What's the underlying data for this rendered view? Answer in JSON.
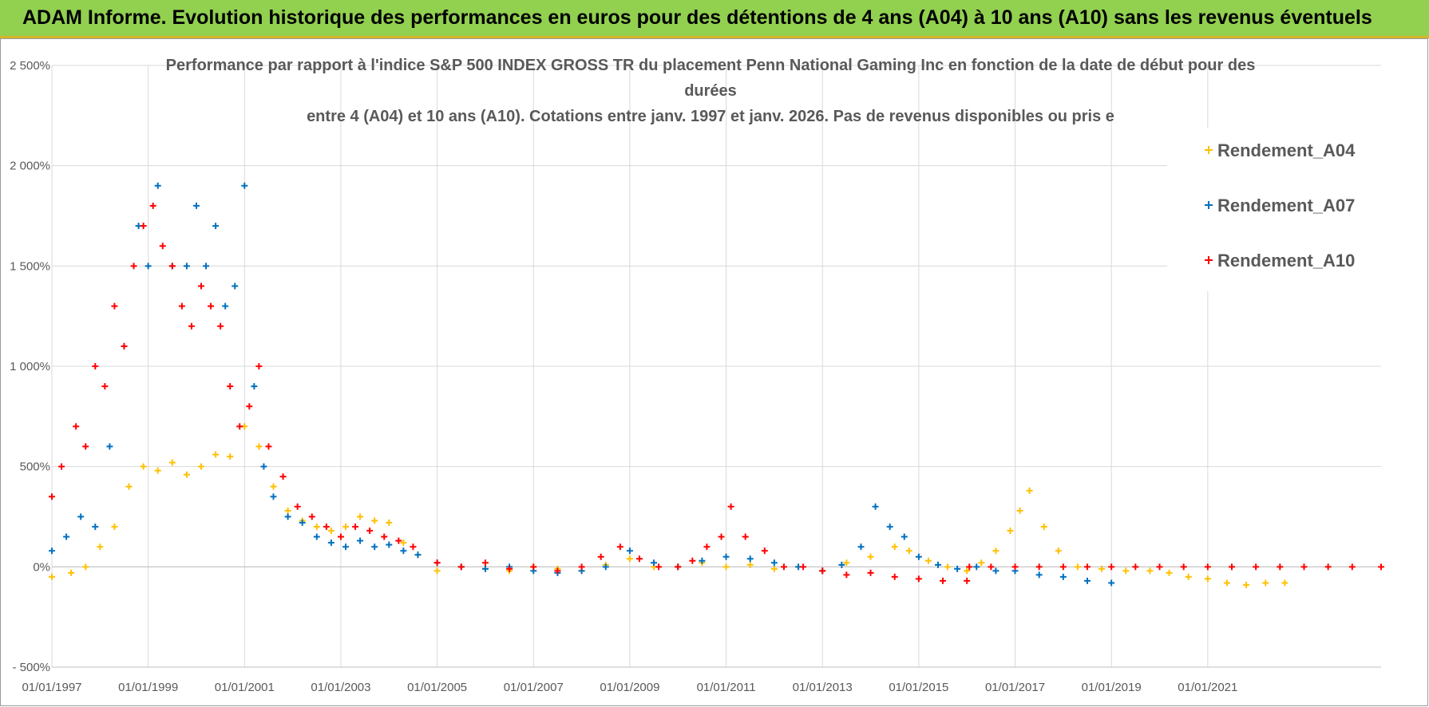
{
  "header": {
    "title": "ADAM Informe. Evolution historique des performances en euros pour des détentions de 4 ans (A04) à 10 ans (A10) sans les revenus éventuels"
  },
  "chart_data": {
    "type": "scatter",
    "title_lines": [
      "Performance par rapport à l'indice S&P 500 INDEX GROSS TR  du placement Penn National Gaming Inc en fonction de la date de début pour des",
      "durées",
      "entre 4 (A04) et 10 ans (A10). Cotations entre janv. 1997 et janv. 2026. Pas de revenus disponibles ou pris e"
    ],
    "xlabel": "",
    "ylabel": "",
    "xlim": [
      1997.0,
      2024.6
    ],
    "ylim": [
      -500,
      2500
    ],
    "ytick_values": [
      -500,
      0,
      500,
      1000,
      1500,
      2000,
      2500
    ],
    "ytick_labels": [
      "- 500%",
      "0%",
      "500%",
      "1 000%",
      "1 500%",
      "2 000%",
      "2 500%"
    ],
    "xtick_values": [
      1997,
      1999,
      2001,
      2003,
      2005,
      2007,
      2009,
      2011,
      2013,
      2015,
      2017,
      2019,
      2021
    ],
    "xtick_labels": [
      "01/01/1997",
      "01/01/1999",
      "01/01/2001",
      "01/01/2003",
      "01/01/2005",
      "01/01/2007",
      "01/01/2009",
      "01/01/2011",
      "01/01/2013",
      "01/01/2015",
      "01/01/2017",
      "01/01/2019",
      "01/01/2021"
    ],
    "grid": true,
    "legend_position": "top-right",
    "series": [
      {
        "name": "Rendement_A04",
        "color": "#ffc000",
        "x": [
          1997.0,
          1997.4,
          1997.7,
          1998.0,
          1998.3,
          1998.6,
          1998.9,
          1999.2,
          1999.5,
          1999.8,
          2000.1,
          2000.4,
          2000.7,
          2001.0,
          2001.3,
          2001.6,
          2001.9,
          2002.2,
          2002.5,
          2002.8,
          2003.1,
          2003.4,
          2003.7,
          2004.0,
          2004.3,
          2004.6,
          2005.0,
          2005.5,
          2006.0,
          2006.5,
          2007.0,
          2007.5,
          2008.0,
          2008.5,
          2009.0,
          2009.5,
          2010.0,
          2010.5,
          2011.0,
          2011.5,
          2012.0,
          2012.5,
          2013.0,
          2013.5,
          2014.0,
          2014.5,
          2014.8,
          2015.2,
          2015.6,
          2016.0,
          2016.3,
          2016.6,
          2016.9,
          2017.1,
          2017.3,
          2017.6,
          2017.9,
          2018.3,
          2018.8,
          2019.3,
          2019.8,
          2020.2,
          2020.6,
          2021.0,
          2021.4,
          2021.8,
          2022.2,
          2022.6
        ],
        "y": [
          -50,
          -30,
          0,
          100,
          200,
          400,
          500,
          480,
          520,
          460,
          500,
          560,
          550,
          700,
          600,
          400,
          280,
          230,
          200,
          180,
          200,
          250,
          230,
          220,
          120,
          60,
          -20,
          0,
          -10,
          -20,
          0,
          -10,
          -20,
          10,
          40,
          0,
          0,
          20,
          0,
          10,
          -10,
          0,
          -20,
          20,
          50,
          100,
          80,
          30,
          0,
          -20,
          20,
          80,
          180,
          280,
          380,
          200,
          80,
          0,
          -10,
          -20,
          -20,
          -30,
          -50,
          -60,
          -80,
          -90,
          -80,
          -80
        ]
      },
      {
        "name": "Rendement_A07",
        "color": "#0070c0",
        "x": [
          1997.0,
          1997.3,
          1997.6,
          1997.9,
          1998.2,
          1998.5,
          1998.8,
          1999.0,
          1999.2,
          1999.5,
          1999.8,
          2000.0,
          2000.2,
          2000.4,
          2000.6,
          2000.8,
          2001.0,
          2001.2,
          2001.4,
          2001.6,
          2001.9,
          2002.2,
          2002.5,
          2002.8,
          2003.1,
          2003.4,
          2003.7,
          2004.0,
          2004.3,
          2004.6,
          2005.0,
          2005.5,
          2006.0,
          2006.5,
          2007.0,
          2007.5,
          2008.0,
          2008.5,
          2009.0,
          2009.5,
          2010.0,
          2010.5,
          2011.0,
          2011.5,
          2012.0,
          2012.5,
          2013.0,
          2013.4,
          2013.8,
          2014.1,
          2014.4,
          2014.7,
          2015.0,
          2015.4,
          2015.8,
          2016.2,
          2016.6,
          2017.0,
          2017.5,
          2018.0,
          2018.5,
          2019.0
        ],
        "y": [
          80,
          150,
          250,
          200,
          600,
          1100,
          1700,
          1500,
          1900,
          1500,
          1500,
          1800,
          1500,
          1700,
          1300,
          1400,
          1900,
          900,
          500,
          350,
          250,
          220,
          150,
          120,
          100,
          130,
          100,
          110,
          80,
          60,
          20,
          0,
          -10,
          0,
          -20,
          -30,
          -20,
          0,
          80,
          20,
          0,
          30,
          50,
          40,
          20,
          0,
          -20,
          10,
          100,
          300,
          200,
          150,
          50,
          10,
          -10,
          0,
          -20,
          -20,
          -40,
          -50,
          -70,
          -80
        ]
      },
      {
        "name": "Rendement_A10",
        "color": "#ff0000",
        "x": [
          1997.0,
          1997.2,
          1997.5,
          1997.7,
          1997.9,
          1998.1,
          1998.3,
          1998.5,
          1998.7,
          1998.9,
          1999.1,
          1999.3,
          1999.5,
          1999.7,
          1999.9,
          2000.1,
          2000.3,
          2000.5,
          2000.7,
          2000.9,
          2001.1,
          2001.3,
          2001.5,
          2001.8,
          2002.1,
          2002.4,
          2002.7,
          2003.0,
          2003.3,
          2003.6,
          2003.9,
          2004.2,
          2004.5,
          2005.0,
          2005.5,
          2006.0,
          2006.5,
          2007.0,
          2007.5,
          2008.0,
          2008.4,
          2008.8,
          2009.2,
          2009.6,
          2010.0,
          2010.3,
          2010.6,
          2010.9,
          2011.1,
          2011.4,
          2011.8,
          2012.2,
          2012.6,
          2013.0,
          2013.5,
          2014.0,
          2014.5,
          2015.0,
          2015.5,
          2016.0,
          2016.05,
          2016.5,
          2017.0,
          2017.5,
          2018.0,
          2018.5,
          2019.0,
          2019.5,
          2020.0,
          2020.5,
          2021.0,
          2021.5,
          2022.0,
          2022.5,
          2023.0,
          2023.5,
          2024.0,
          2024.6
        ],
        "y": [
          350,
          500,
          700,
          600,
          1000,
          900,
          1300,
          1100,
          1500,
          1700,
          1800,
          1600,
          1500,
          1300,
          1200,
          1400,
          1300,
          1200,
          900,
          700,
          800,
          1000,
          600,
          450,
          300,
          250,
          200,
          150,
          200,
          180,
          150,
          130,
          100,
          20,
          0,
          20,
          -10,
          0,
          -20,
          0,
          50,
          100,
          40,
          0,
          0,
          30,
          100,
          150,
          300,
          150,
          80,
          0,
          0,
          -20,
          -40,
          -30,
          -50,
          -60,
          -70,
          -70,
          0,
          0,
          0,
          0,
          0,
          0,
          0,
          0,
          0,
          0,
          0,
          0,
          0,
          0,
          0,
          0,
          0,
          0
        ]
      }
    ]
  }
}
